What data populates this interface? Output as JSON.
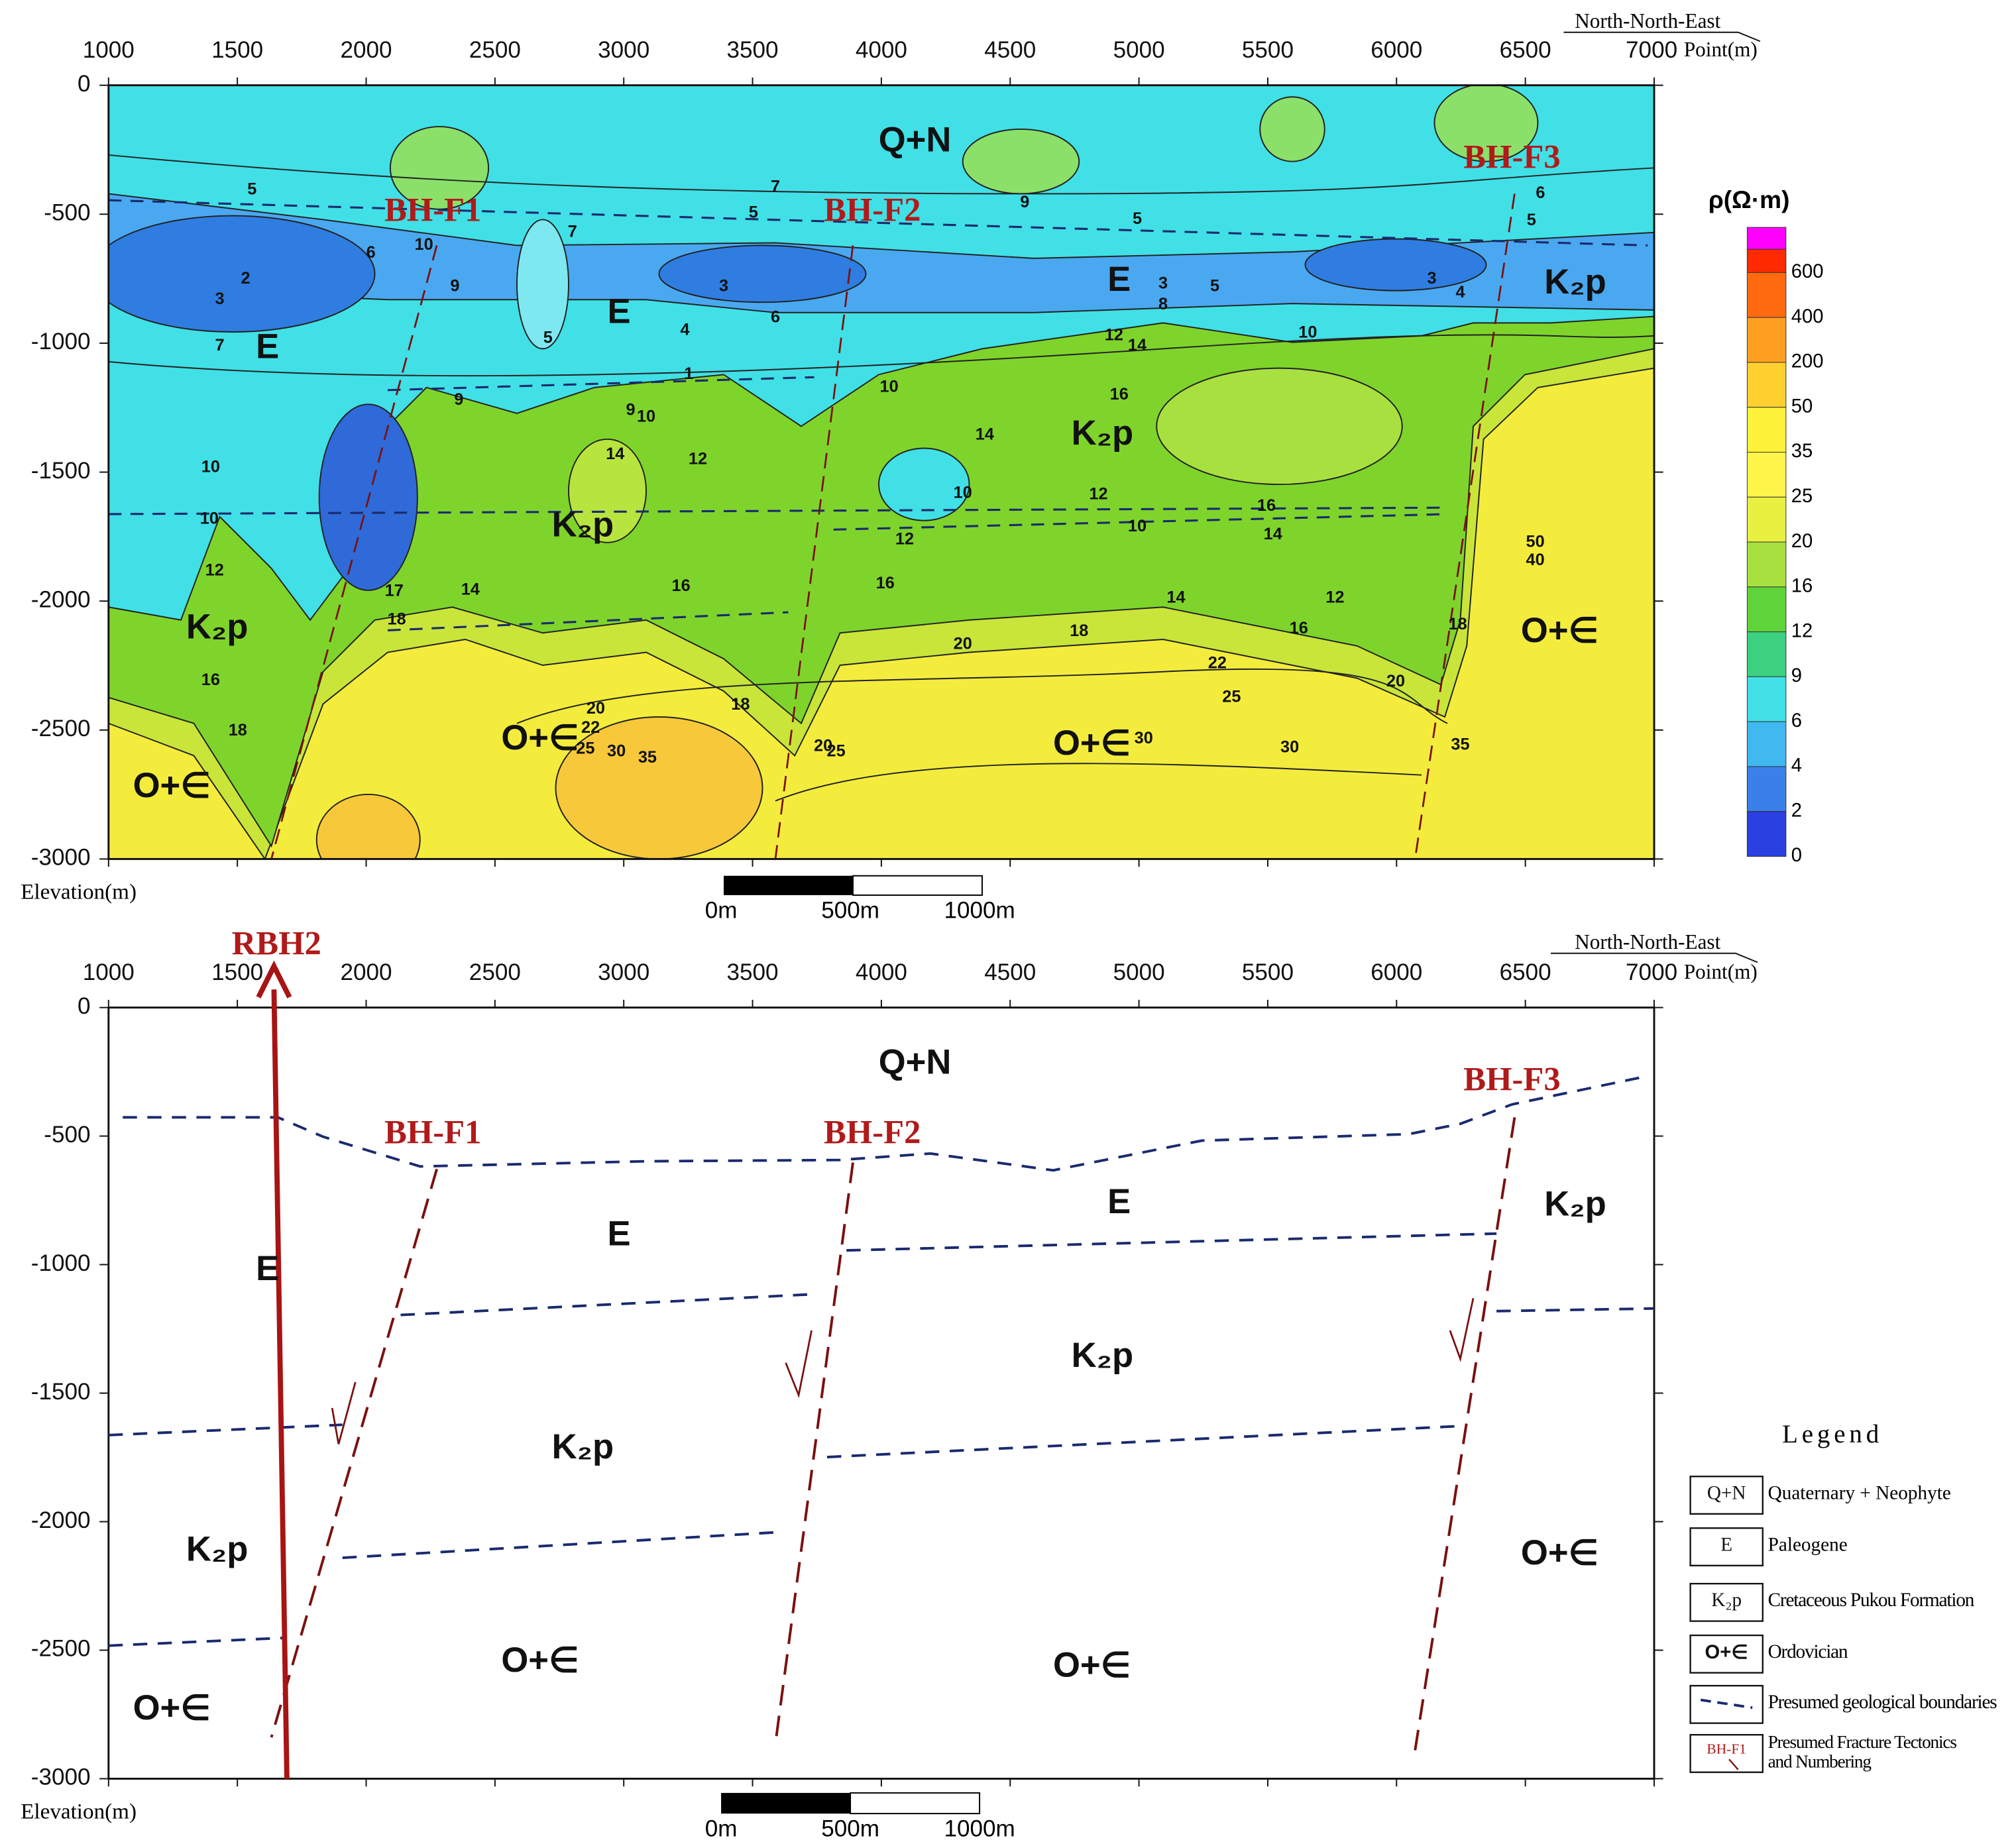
{
  "top_panel": {
    "direction": "North-North-East",
    "x_axis_label": "Point(m)",
    "y_axis_label": "Elevation(m)",
    "x_ticks": [
      "1000",
      "1500",
      "2000",
      "2500",
      "3000",
      "3500",
      "4000",
      "4500",
      "5000",
      "5500",
      "6000",
      "6500",
      "7000"
    ],
    "y_ticks": [
      "0",
      "-500",
      "-1000",
      "-1500",
      "-2000",
      "-2500",
      "-3000"
    ],
    "colorbar_title": "ρ(Ω·m)",
    "colorbar_ticks": [
      "600",
      "400",
      "200",
      "50",
      "35",
      "25",
      "20",
      "16",
      "12",
      "9",
      "6",
      "4",
      "2",
      "0"
    ],
    "formations": [
      "Q+N",
      "E",
      "E",
      "E",
      "K₂p",
      "K₂p",
      "K₂p",
      "K₂p",
      "O+∈",
      "O+∈",
      "O+∈",
      "O+∈"
    ],
    "faults": [
      "BH-F1",
      "BH-F2",
      "BH-F3"
    ],
    "contour_labels": [
      "5",
      "6",
      "10",
      "9",
      "2",
      "3",
      "7",
      "9",
      "7",
      "5",
      "3",
      "6",
      "5",
      "7",
      "4",
      "1",
      "9",
      "10",
      "9",
      "5",
      "3",
      "5",
      "8",
      "3",
      "4",
      "6",
      "5",
      "10",
      "12",
      "14",
      "16",
      "14",
      "10",
      "12",
      "14",
      "10",
      "12",
      "10",
      "16",
      "14",
      "12",
      "16",
      "16",
      "14",
      "17",
      "18",
      "14",
      "12",
      "16",
      "18",
      "20",
      "22",
      "25",
      "20",
      "18",
      "20",
      "18",
      "22",
      "25",
      "30",
      "35",
      "30",
      "30",
      "35",
      "10",
      "10",
      "12",
      "16",
      "18",
      "50",
      "40",
      "20",
      "25"
    ],
    "scale_bar": [
      "0m",
      "500m",
      "1000m"
    ]
  },
  "bottom_panel": {
    "direction": "North-North-East",
    "x_axis_label": "Point(m)",
    "y_axis_label": "Elevation(m)",
    "x_ticks": [
      "1000",
      "1500",
      "2000",
      "2500",
      "3000",
      "3500",
      "4000",
      "4500",
      "5000",
      "5500",
      "6000",
      "6500",
      "7000"
    ],
    "y_ticks": [
      "0",
      "-500",
      "-1000",
      "-1500",
      "-2000",
      "-2500",
      "-3000"
    ],
    "borehole": "RBH2",
    "formations": [
      "Q+N",
      "E",
      "E",
      "E",
      "K₂p",
      "K₂p",
      "K₂p",
      "K₂p",
      "O+∈",
      "O+∈",
      "O+∈",
      "O+∈"
    ],
    "faults": [
      "BH-F1",
      "BH-F2",
      "BH-F3"
    ],
    "scale_bar": [
      "0m",
      "500m",
      "1000m"
    ],
    "legend": {
      "title": "Legend",
      "items": [
        {
          "symbol": "Q+N",
          "label": "Quaternary + Neophyte"
        },
        {
          "symbol": "E",
          "label": "Paleogene"
        },
        {
          "symbol": "K₂p",
          "label": "Cretaceous Pukou Formation"
        },
        {
          "symbol": "O+∈",
          "label": "Ordovician"
        },
        {
          "label": "Presumed geological boundaries"
        },
        {
          "symbol": "BH-F1",
          "label": [
            "Presumed Fracture Tectonics",
            "and Numbering"
          ]
        }
      ]
    }
  }
}
